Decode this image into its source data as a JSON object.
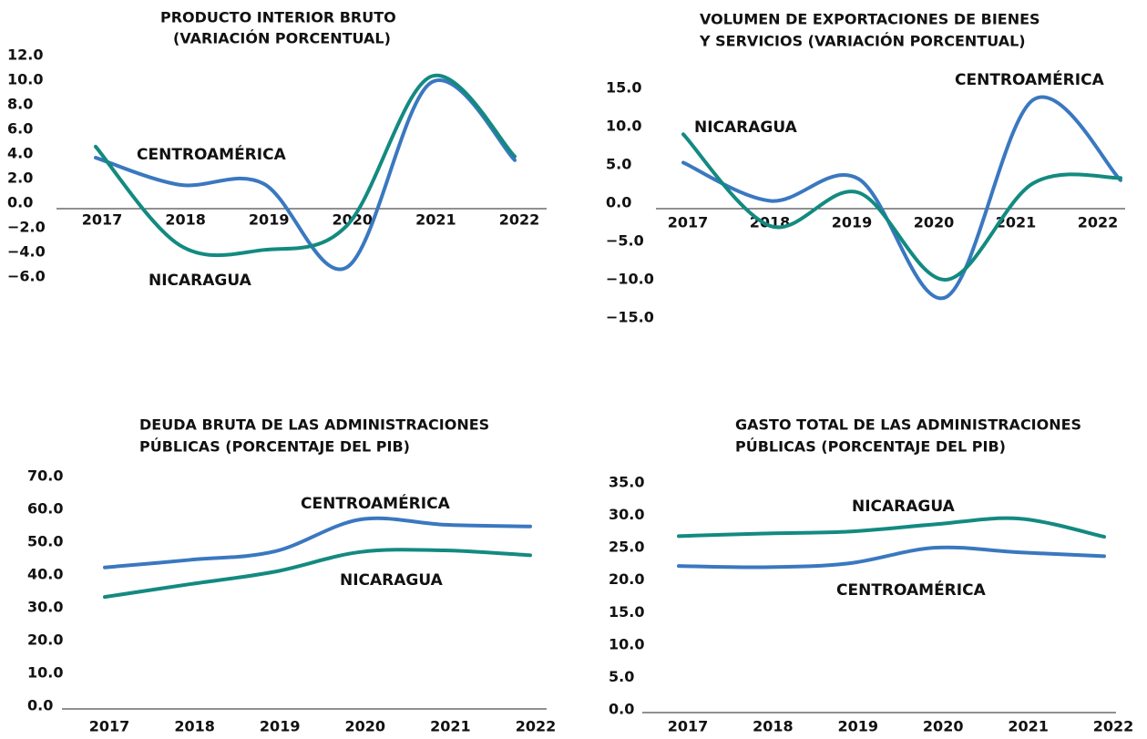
{
  "chart_data": [
    {
      "type": "line",
      "title": [
        "PRODUCTO INTERIOR BRUTO",
        "(VARIACIÓN PORCENTUAL)"
      ],
      "categories": [
        "2017",
        "2018",
        "2019",
        "2020",
        "2021",
        "2022"
      ],
      "ylim": [
        -6,
        12
      ],
      "yticks": [
        {
          "value": 12,
          "label": "12.0"
        },
        {
          "value": 10,
          "label": "10.0"
        },
        {
          "value": 8,
          "label": "8.0"
        },
        {
          "value": 6,
          "label": "6.0"
        },
        {
          "value": 4,
          "label": "4.0"
        },
        {
          "value": 2,
          "label": "2.0"
        },
        {
          "value": 0,
          "label": "0.0"
        },
        {
          "value": -2,
          "label": "−2.0"
        },
        {
          "value": -4,
          "label": "−4.0"
        },
        {
          "value": -6,
          "label": "−6.0"
        }
      ],
      "series": [
        {
          "name": "CENTROAMÉRICA",
          "color": "#3a78c0",
          "values": [
            3.7,
            1.5,
            1.6,
            -5.2,
            9.8,
            3.5
          ]
        },
        {
          "name": "NICARAGUA",
          "color": "#138a80",
          "values": [
            4.6,
            -3.4,
            -3.8,
            -1.8,
            10.3,
            3.8
          ]
        }
      ]
    },
    {
      "type": "line",
      "title": [
        "VOLUMEN DE EXPORTACIONES DE BIENES",
        "Y SERVICIOS (VARIACIÓN PORCENTUAL)"
      ],
      "categories": [
        "2017",
        "2018",
        "2019",
        "2020",
        "2021",
        "2022"
      ],
      "ylim": [
        -15,
        15
      ],
      "yticks": [
        {
          "value": 15,
          "label": "15.0"
        },
        {
          "value": 10,
          "label": "10.0"
        },
        {
          "value": 5,
          "label": "5.0"
        },
        {
          "value": 0,
          "label": "0.0"
        },
        {
          "value": -5,
          "label": "−5.0"
        },
        {
          "value": -10,
          "label": "−10.0"
        },
        {
          "value": -15,
          "label": "−15.0"
        }
      ],
      "series": [
        {
          "name": "CENTROAMÉRICA",
          "color": "#3a78c0",
          "values": [
            5.3,
            0.3,
            3.2,
            -12.3,
            13.5,
            3.0
          ]
        },
        {
          "name": "NICARAGUA",
          "color": "#138a80",
          "values": [
            9.0,
            -3.0,
            1.4,
            -10.0,
            2.6,
            3.3
          ]
        }
      ]
    },
    {
      "type": "line",
      "title": [
        "DEUDA BRUTA DE LAS ADMINISTRACIONES",
        "PÚBLICAS  (PORCENTAJE DEL PIB)"
      ],
      "categories": [
        "2017",
        "2018",
        "2019",
        "2020",
        "2021",
        "2022"
      ],
      "ylim": [
        0,
        70
      ],
      "yticks": [
        {
          "value": 70,
          "label": "70.0"
        },
        {
          "value": 60,
          "label": "60.0"
        },
        {
          "value": 50,
          "label": "50.0"
        },
        {
          "value": 40,
          "label": "40.0"
        },
        {
          "value": 30,
          "label": "30.0"
        },
        {
          "value": 20,
          "label": "20.0"
        },
        {
          "value": 10,
          "label": "10.0"
        },
        {
          "value": 0,
          "label": "0.0"
        }
      ],
      "series": [
        {
          "name": "CENTROAMÉRICA",
          "color": "#3a78c0",
          "values": [
            42.3,
            44.6,
            47.2,
            56.9,
            55.3,
            54.8
          ]
        },
        {
          "name": "NICARAGUA",
          "color": "#138a80",
          "values": [
            33.3,
            37.2,
            41.0,
            47.0,
            47.5,
            46.0
          ]
        }
      ]
    },
    {
      "type": "line",
      "title": [
        "GASTO TOTAL DE LAS ADMINISTRACIONES",
        "PÚBLICAS (PORCENTAJE DEL PIB)"
      ],
      "categories": [
        "2017",
        "2018",
        "2019",
        "2020",
        "2021",
        "2022"
      ],
      "ylim": [
        0,
        35
      ],
      "yticks": [
        {
          "value": 35,
          "label": "35.0"
        },
        {
          "value": 30,
          "label": "30.0"
        },
        {
          "value": 25,
          "label": "25.0"
        },
        {
          "value": 20,
          "label": "20.0"
        },
        {
          "value": 15,
          "label": "15.0"
        },
        {
          "value": 10,
          "label": "10.0"
        },
        {
          "value": 5,
          "label": "5.0"
        },
        {
          "value": 0,
          "label": "0.0"
        }
      ],
      "series": [
        {
          "name": "CENTROAMÉRICA",
          "color": "#3a78c0",
          "values": [
            22.2,
            22.0,
            22.6,
            25.0,
            24.3,
            23.7
          ]
        },
        {
          "name": "NICARAGUA",
          "color": "#138a80",
          "values": [
            26.8,
            27.2,
            27.5,
            28.6,
            29.5,
            26.7
          ]
        }
      ]
    }
  ]
}
